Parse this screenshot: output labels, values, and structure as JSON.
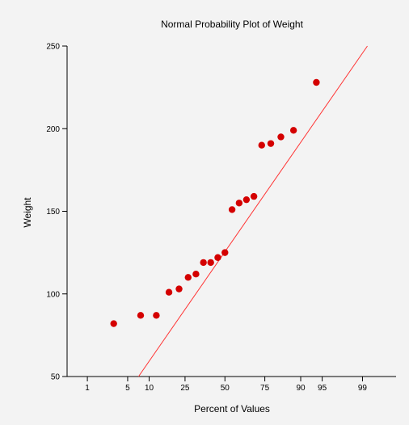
{
  "chart_data": {
    "type": "scatter",
    "title": "Normal Probability Plot of Weight",
    "xlabel": "Percent of Values",
    "ylabel": "Weight",
    "x_scale": "normal-probability",
    "xlim_percent": [
      0.38,
      99.81
    ],
    "ylim": [
      50,
      250
    ],
    "x_ticks": [
      1,
      5,
      10,
      25,
      50,
      75,
      90,
      95,
      99
    ],
    "y_ticks": [
      50,
      100,
      150,
      200,
      250
    ],
    "points": [
      {
        "x": 3.0,
        "y": 82
      },
      {
        "x": 7.7,
        "y": 87
      },
      {
        "x": 12.3,
        "y": 87
      },
      {
        "x": 17.2,
        "y": 101
      },
      {
        "x": 21.9,
        "y": 103
      },
      {
        "x": 26.7,
        "y": 110
      },
      {
        "x": 31.2,
        "y": 112
      },
      {
        "x": 35.8,
        "y": 119
      },
      {
        "x": 40.5,
        "y": 119
      },
      {
        "x": 45.2,
        "y": 122
      },
      {
        "x": 50.0,
        "y": 125
      },
      {
        "x": 54.8,
        "y": 151
      },
      {
        "x": 59.5,
        "y": 155
      },
      {
        "x": 64.2,
        "y": 157
      },
      {
        "x": 68.8,
        "y": 159
      },
      {
        "x": 73.3,
        "y": 190
      },
      {
        "x": 78.1,
        "y": 191
      },
      {
        "x": 82.8,
        "y": 195
      },
      {
        "x": 87.7,
        "y": 199
      },
      {
        "x": 93.9,
        "y": 228
      }
    ],
    "reference_line": [
      {
        "x": 7.2,
        "y": 50
      },
      {
        "x": 99.2,
        "y": 250
      }
    ],
    "grid": false,
    "legend": "none",
    "colors": {
      "points": "#d40000",
      "line": "#ff3333",
      "axes": "#000000",
      "background": "#f3f3f3"
    }
  }
}
